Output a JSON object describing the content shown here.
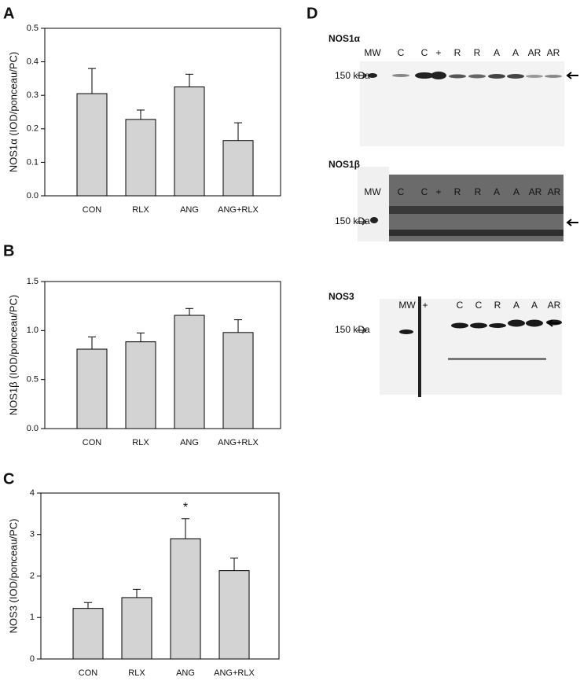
{
  "chart_data": [
    {
      "type": "bar",
      "panel": "A",
      "ylabel": "NOS1α (IOD/ponceau/PC)",
      "categories": [
        "CON",
        "RLX",
        "ANG",
        "ANG+RLX"
      ],
      "values": [
        0.305,
        0.228,
        0.325,
        0.165
      ],
      "errors": [
        0.075,
        0.028,
        0.038,
        0.053
      ],
      "color": "#d3d3d3",
      "ylim": [
        0,
        0.5
      ],
      "yticks": [
        {
          "value": 0,
          "label": "0.0"
        },
        0.1,
        0.2,
        0.3,
        0.4,
        0.5
      ],
      "grid": false
    },
    {
      "type": "bar",
      "panel": "B",
      "ylabel": "NOS1β (IOD/ponceau/PC)",
      "categories": [
        "CON",
        "RLX",
        "ANG",
        "ANG+RLX"
      ],
      "values": [
        0.81,
        0.885,
        1.155,
        0.98
      ],
      "errors": [
        0.125,
        0.09,
        0.07,
        0.13
      ],
      "color": "#d3d3d3",
      "ylim": [
        0,
        1.5
      ],
      "yticks": [
        {
          "value": 0,
          "label": "0.0"
        },
        0.5,
        {
          "value": 1,
          "label": "1.0"
        },
        1.5
      ],
      "grid": false
    },
    {
      "type": "bar",
      "panel": "C",
      "ylabel": "NOS3 (IOD/ponceau/PC)",
      "categories": [
        "CON",
        "RLX",
        "ANG",
        "ANG+RLX"
      ],
      "values": [
        1.22,
        1.48,
        2.9,
        2.13
      ],
      "errors": [
        0.14,
        0.2,
        0.48,
        0.3
      ],
      "color": "#d3d3d3",
      "ylim": [
        0,
        4
      ],
      "yticks": [
        0,
        1,
        2,
        3,
        4
      ],
      "grid": false,
      "annotations": [
        {
          "text": "*",
          "category": "ANG"
        }
      ]
    }
  ],
  "blot_panel": {
    "panel": "D",
    "blots": [
      {
        "title": "NOS1α",
        "lanes": [
          "MW",
          "C",
          "C",
          "+",
          "R",
          "R",
          "A",
          "A",
          "AR",
          "AR"
        ],
        "marker": "150 kDa"
      },
      {
        "title": "NOS1β",
        "lanes": [
          "MW",
          "C",
          "C",
          "+",
          "R",
          "R",
          "A",
          "A",
          "AR",
          "AR"
        ],
        "marker": "150 kDa"
      },
      {
        "title": "NOS3",
        "lanes": [
          "MW",
          "+",
          "C",
          "C",
          "R",
          "A",
          "A",
          "AR"
        ],
        "marker": "150 kDa"
      }
    ]
  }
}
